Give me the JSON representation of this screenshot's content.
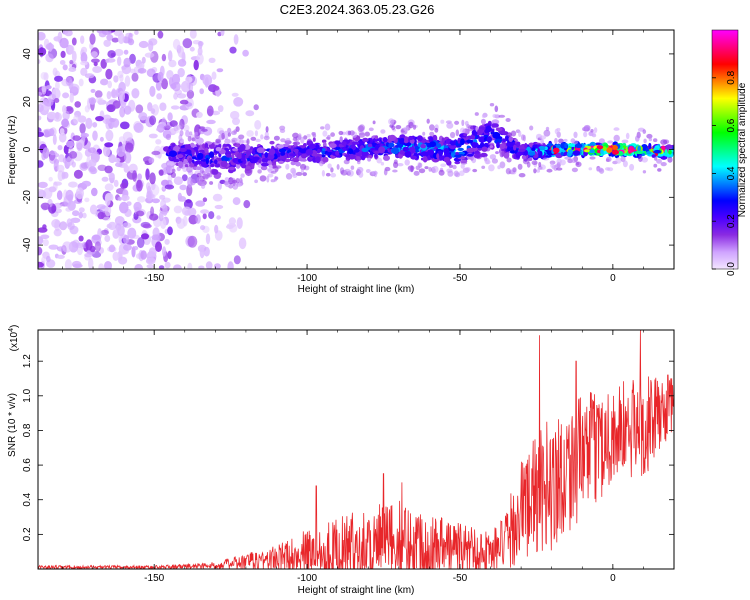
{
  "title": "C2E3.2024.363.05.23.G26",
  "chart_data": [
    {
      "type": "heatmap",
      "name": "spectrogram",
      "xlabel": "Height of straight line (km)",
      "ylabel": "Frequency (Hz)",
      "xlim": [
        -188,
        20
      ],
      "ylim": [
        -50,
        50
      ],
      "xticks": [
        -150,
        -100,
        -50,
        0
      ],
      "yticks": [
        -40,
        -20,
        0,
        20,
        40
      ],
      "colorbar": {
        "label": "Normalized spectral amplitude",
        "range": [
          0,
          1
        ],
        "ticks": [
          "0.0",
          "0.2",
          "0.4",
          "0.6",
          "0.8"
        ],
        "colors": [
          "#f3e6ff",
          "#cfa3ff",
          "#8a2be2",
          "#4b00ff",
          "#0000ff",
          "#0080ff",
          "#00ffff",
          "#00ff80",
          "#00ff00",
          "#80ff00",
          "#ffff00",
          "#ff8000",
          "#ff0000",
          "#ff0080",
          "#ff00ff"
        ]
      },
      "signal_band": [
        {
          "x": -145,
          "center": -1,
          "half_width": 4,
          "amp": 0.25
        },
        {
          "x": -130,
          "center": -4,
          "half_width": 6,
          "amp": 0.25
        },
        {
          "x": -110,
          "center": -2,
          "half_width": 4,
          "amp": 0.28
        },
        {
          "x": -90,
          "center": 0,
          "half_width": 4,
          "amp": 0.3
        },
        {
          "x": -70,
          "center": 1,
          "half_width": 4,
          "amp": 0.35
        },
        {
          "x": -50,
          "center": 0,
          "half_width": 5,
          "amp": 0.35
        },
        {
          "x": -40,
          "center": 6,
          "half_width": 7,
          "amp": 0.25
        },
        {
          "x": -30,
          "center": -1,
          "half_width": 3,
          "amp": 0.3
        },
        {
          "x": -15,
          "center": 0,
          "half_width": 2,
          "amp": 0.6
        },
        {
          "x": 0,
          "center": 0,
          "half_width": 2,
          "amp": 0.8
        },
        {
          "x": 20,
          "center": -1,
          "half_width": 2,
          "amp": 0.5
        }
      ],
      "noise_region": [
        -188,
        -125
      ]
    },
    {
      "type": "line",
      "name": "snr",
      "xlabel": "Height of straight line (km)",
      "ylabel": "SNR (10 * v/v)",
      "yscale_label": "(x10",
      "yscale_exp": "4",
      "yscale_close": ")",
      "xlim": [
        -188,
        20
      ],
      "ylim": [
        0,
        1.38
      ],
      "xticks": [
        -150,
        -100,
        -50,
        0
      ],
      "yticks": [
        0.2,
        0.4,
        0.6,
        0.8,
        1.0,
        1.2
      ],
      "color": "#e8262a",
      "envelope": [
        {
          "x": -188,
          "base": 0.01,
          "amp": 0.01
        },
        {
          "x": -150,
          "base": 0.01,
          "amp": 0.01
        },
        {
          "x": -130,
          "base": 0.02,
          "amp": 0.02
        },
        {
          "x": -120,
          "base": 0.04,
          "amp": 0.05
        },
        {
          "x": -110,
          "base": 0.06,
          "amp": 0.08
        },
        {
          "x": -100,
          "base": 0.09,
          "amp": 0.14
        },
        {
          "x": -90,
          "base": 0.12,
          "amp": 0.18
        },
        {
          "x": -80,
          "base": 0.14,
          "amp": 0.22
        },
        {
          "x": -70,
          "base": 0.16,
          "amp": 0.24
        },
        {
          "x": -60,
          "base": 0.14,
          "amp": 0.2
        },
        {
          "x": -50,
          "base": 0.12,
          "amp": 0.16
        },
        {
          "x": -40,
          "base": 0.1,
          "amp": 0.12
        },
        {
          "x": -35,
          "base": 0.15,
          "amp": 0.18
        },
        {
          "x": -30,
          "base": 0.35,
          "amp": 0.3
        },
        {
          "x": -20,
          "base": 0.5,
          "amp": 0.4
        },
        {
          "x": -10,
          "base": 0.65,
          "amp": 0.35
        },
        {
          "x": 0,
          "base": 0.78,
          "amp": 0.3
        },
        {
          "x": 10,
          "base": 0.82,
          "amp": 0.3
        },
        {
          "x": 20,
          "base": 0.95,
          "amp": 0.15
        }
      ],
      "peaks": [
        {
          "x": -97,
          "y": 0.48
        },
        {
          "x": -75,
          "y": 0.55
        },
        {
          "x": -69,
          "y": 0.5
        },
        {
          "x": -24,
          "y": 1.35
        },
        {
          "x": -12,
          "y": 1.2
        },
        {
          "x": 9,
          "y": 1.38
        },
        {
          "x": 18,
          "y": 1.12
        }
      ]
    }
  ]
}
